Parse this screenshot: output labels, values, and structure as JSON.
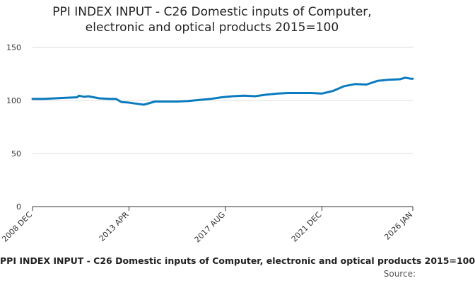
{
  "chart_data": {
    "type": "line",
    "title_lines": [
      "PPI INDEX INPUT - C26 Domestic inputs of Computer,",
      "electronic and optical products 2015=100"
    ],
    "xlabel": "",
    "ylabel": "",
    "ylim": [
      0,
      150
    ],
    "y_ticks": [
      0,
      50,
      100,
      150
    ],
    "x_tick_labels": [
      "2008 DEC",
      "2013 APR",
      "2017 AUG",
      "2021 DEC",
      "2026 JAN"
    ],
    "grid": true,
    "legend_position": "bottom",
    "line_color": "#0a7bbf",
    "series": [
      {
        "name": "PPI INDEX INPUT - C26 Domestic inputs of Computer, electronic and optical products 2015=100",
        "x": [
          "2008 DEC",
          "2009 JUN",
          "2009 DEC",
          "2010 JUN",
          "2010 DEC",
          "2011 JAN",
          "2011 APR",
          "2011 JUN",
          "2011 DEC",
          "2012 JUN",
          "2012 SEP",
          "2012 DEC",
          "2013 APR",
          "2013 JUN",
          "2013 DEC",
          "2014 JUN",
          "2014 DEC",
          "2015 JUN",
          "2015 DEC",
          "2016 JUN",
          "2016 DEC",
          "2017 JUN",
          "2017 DEC",
          "2018 JUN",
          "2018 DEC",
          "2019 JUN",
          "2019 DEC",
          "2020 JUN",
          "2020 DEC",
          "2021 JUN",
          "2021 DEC",
          "2022 JUN",
          "2022 DEC",
          "2023 JUN",
          "2023 DEC",
          "2024 JUN",
          "2024 DEC",
          "2025 JUN",
          "2025 SEP",
          "2025 DEC",
          "2026 JAN"
        ],
        "values": [
          101.5,
          101.5,
          102.0,
          102.5,
          103.0,
          104.5,
          103.5,
          104.0,
          102.0,
          101.5,
          101.5,
          98.5,
          98.0,
          97.5,
          96.0,
          99.0,
          99.0,
          99.0,
          99.5,
          100.5,
          101.5,
          103.0,
          104.0,
          104.5,
          104.0,
          105.5,
          106.5,
          107.0,
          107.0,
          107.0,
          106.5,
          109.0,
          113.5,
          115.5,
          115.0,
          118.5,
          119.5,
          120.0,
          121.5,
          120.5,
          120.5
        ]
      }
    ]
  },
  "footer": {
    "source_label": "Source:"
  }
}
